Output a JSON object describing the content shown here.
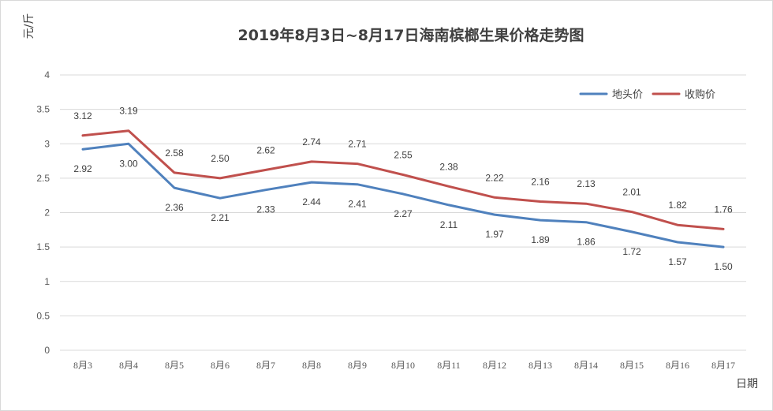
{
  "chart_data": {
    "type": "line",
    "title": "2019年8月3日~8月17日海南槟榔生果价格走势图",
    "ylabel": "元/斤",
    "xlabel": "日期",
    "ylim": [
      0,
      4
    ],
    "yticks": [
      "0",
      "0.5",
      "1",
      "1.5",
      "2",
      "2.5",
      "3",
      "3.5",
      "4"
    ],
    "grid": true,
    "legend_position": "top-right",
    "categories": [
      "8月3",
      "8月4",
      "8月5",
      "8月6",
      "8月7",
      "8月8",
      "8月9",
      "8月10",
      "8月11",
      "8月12",
      "8月13",
      "8月14",
      "8月15",
      "8月16",
      "8月17"
    ],
    "series": [
      {
        "name": "地头价",
        "color": "#4f81bd",
        "values": [
          2.92,
          3.0,
          2.36,
          2.21,
          2.33,
          2.44,
          2.41,
          2.27,
          2.11,
          1.97,
          1.89,
          1.86,
          1.72,
          1.57,
          1.5
        ],
        "labels": [
          "2.92",
          "3.00",
          "2.36",
          "2.21",
          "2.33",
          "2.44",
          "2.41",
          "2.27",
          "2.11",
          "1.97",
          "1.89",
          "1.86",
          "1.72",
          "1.57",
          "1.50"
        ]
      },
      {
        "name": "收购价",
        "color": "#c0504d",
        "values": [
          3.12,
          3.19,
          2.58,
          2.5,
          2.62,
          2.74,
          2.71,
          2.55,
          2.38,
          2.22,
          2.16,
          2.13,
          2.01,
          1.82,
          1.76
        ],
        "labels": [
          "3.12",
          "3.19",
          "2.58",
          "2.50",
          "2.62",
          "2.74",
          "2.71",
          "2.55",
          "2.38",
          "2.22",
          "2.16",
          "2.13",
          "2.01",
          "1.82",
          "1.76"
        ]
      }
    ]
  }
}
